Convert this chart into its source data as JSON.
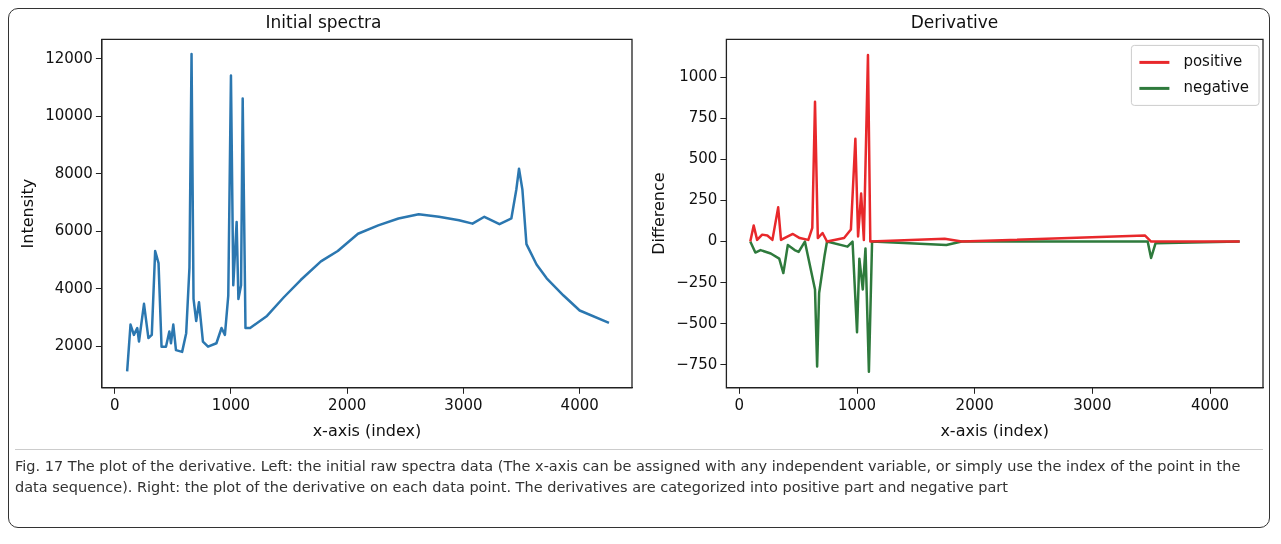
{
  "chart_data": [
    {
      "type": "line",
      "title": "Initial spectra",
      "xlabel": "x-axis (index)",
      "ylabel": "Intensity",
      "xlim": [
        -110,
        4450
      ],
      "ylim": [
        560,
        12680
      ],
      "xticks": [
        0,
        1000,
        2000,
        3000,
        4000
      ],
      "yticks": [
        2000,
        4000,
        6000,
        8000,
        10000,
        12000
      ],
      "grid": false,
      "legend": false,
      "marker": "none",
      "line_style": "solid",
      "series": [
        {
          "color": "#2b77b0",
          "x": [
            107,
            136,
            165,
            194,
            209,
            252,
            290,
            319,
            348,
            377,
            403,
            441,
            470,
            484,
            504,
            527,
            580,
            615,
            643,
            661,
            678,
            701,
            725,
            759,
            803,
            875,
            919,
            948,
            977,
            1000,
            1020,
            1049,
            1064,
            1087,
            1101,
            1125,
            1165,
            1310,
            1455,
            1600,
            1774,
            1919,
            2093,
            2267,
            2441,
            2615,
            2789,
            2962,
            3078,
            3180,
            3310,
            3412,
            3455,
            3478,
            3507,
            3542,
            3629,
            3716,
            3861,
            4000,
            4252
          ],
          "values": [
            1130,
            2760,
            2400,
            2640,
            2170,
            3480,
            2290,
            2400,
            5320,
            4900,
            1990,
            1990,
            2520,
            2110,
            2760,
            1870,
            1810,
            2460,
            4740,
            12170,
            3650,
            2880,
            3540,
            2170,
            1990,
            2110,
            2640,
            2400,
            3770,
            11420,
            4130,
            6330,
            3650,
            4130,
            10620,
            2640,
            2640,
            3060,
            3710,
            4310,
            4960,
            5320,
            5920,
            6210,
            6450,
            6600,
            6510,
            6390,
            6270,
            6510,
            6250,
            6450,
            7460,
            8180,
            7460,
            5560,
            4850,
            4370,
            3770,
            3250,
            2820
          ]
        }
      ],
      "annotations": [
        "Fig. 17 The plot of the derivative. Left: the initial raw spectra data (The x-axis can be assigned with any independent variable, or simply use the index of the point in the data sequence). Right: the plot of the derivative on each data point. The derivatives are categorized into positive part and negative part"
      ]
    },
    {
      "type": "line",
      "title": "Derivative",
      "xlabel": "x-axis (index)",
      "ylabel": "Difference",
      "xlim": [
        -110,
        4450
      ],
      "ylim": [
        -890,
        1230
      ],
      "xticks": [
        0,
        1000,
        2000,
        3000,
        4000
      ],
      "yticks": [
        -750,
        -500,
        -250,
        0,
        250,
        500,
        750,
        1000
      ],
      "grid": false,
      "legend": "top right",
      "marker": "none",
      "line_style": "solid",
      "series": [
        {
          "name": "positive",
          "color": "#e8282b",
          "x": [
            93,
            122,
            151,
            194,
            238,
            281,
            330,
            354,
            412,
            455,
            513,
            586,
            620,
            643,
            667,
            707,
            745,
            890,
            948,
            986,
            1009,
            1035,
            1058,
            1093,
            1113,
            1745,
            1890,
            3446,
            3499,
            4252
          ],
          "values": [
            0,
            98,
            10,
            42,
            37,
            10,
            208,
            10,
            31,
            46,
            21,
            10,
            83,
            850,
            21,
            52,
            0,
            21,
            73,
            625,
            31,
            292,
            10,
            1135,
            0,
            17,
            0,
            37,
            0,
            0
          ]
        },
        {
          "name": "negative",
          "color": "#2e7a3c",
          "x": [
            93,
            136,
            180,
            267,
            339,
            374,
            412,
            470,
            504,
            557,
            643,
            661,
            678,
            725,
            745,
            919,
            962,
            1000,
            1020,
            1049,
            1072,
            1101,
            1128,
            1759,
            1890,
            3470,
            3499,
            3537,
            4252
          ],
          "values": [
            0,
            -67,
            -52,
            -73,
            -104,
            -192,
            -21,
            -52,
            -63,
            0,
            -292,
            -760,
            -313,
            -83,
            0,
            -31,
            0,
            -552,
            -104,
            -292,
            -42,
            -792,
            0,
            -21,
            0,
            0,
            -100,
            -10,
            0
          ]
        }
      ]
    }
  ]
}
